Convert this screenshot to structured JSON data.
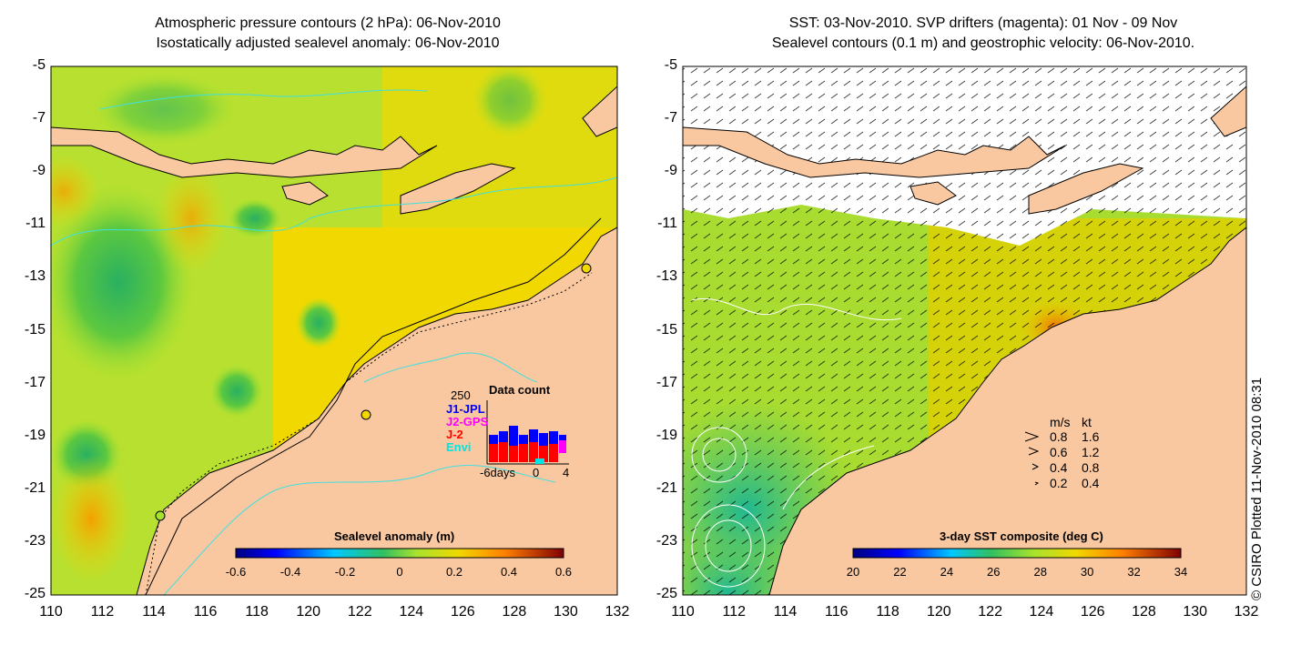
{
  "left_panel": {
    "title_line1": "Atmospheric pressure contours (2 hPa): 06-Nov-2010",
    "title_line2": "Isostatically adjusted sealevel anomaly: 06-Nov-2010",
    "colorbar_label": "Sealevel anomaly (m)",
    "colorbar_ticks": [
      "-0.6",
      "-0.4",
      "-0.2",
      "0",
      "0.2",
      "0.4",
      "0.6"
    ],
    "inset": {
      "title": "Data count",
      "max_label": "250",
      "series": [
        {
          "name": "J1-JPL",
          "color": "#0000ff"
        },
        {
          "name": "J2-GPS",
          "color": "#ff00ff"
        },
        {
          "name": "J-2",
          "color": "#ff0000"
        },
        {
          "name": "Envi",
          "color": "#00e5e5"
        }
      ],
      "x_left": "-6days",
      "x_mid": "0",
      "x_right": "4"
    }
  },
  "right_panel": {
    "title_line1": "SST: 03-Nov-2010. SVP drifters (magenta): 01 Nov - 09 Nov",
    "title_line2": "Sealevel contours (0.1 m) and geostrophic velocity: 06-Nov-2010.",
    "colorbar_label": "3-day SST composite (deg C)",
    "colorbar_ticks": [
      "20",
      "22",
      "24",
      "26",
      "28",
      "30",
      "32",
      "34"
    ],
    "velocity_legend": {
      "header_ms": "m/s",
      "header_kt": "kt",
      "rows": [
        {
          "ms": "0.8",
          "kt": "1.6"
        },
        {
          "ms": "0.6",
          "kt": "1.2"
        },
        {
          "ms": "0.4",
          "kt": "0.8"
        },
        {
          "ms": "0.2",
          "kt": "0.4"
        }
      ]
    }
  },
  "y_ticks": [
    "-5",
    "-7",
    "-9",
    "-11",
    "-13",
    "-15",
    "-17",
    "-19",
    "-21",
    "-23",
    "-25"
  ],
  "x_ticks": [
    "110",
    "112",
    "114",
    "116",
    "118",
    "120",
    "122",
    "124",
    "126",
    "128",
    "130",
    "132"
  ],
  "credit": "© CSIRO Plotted 11-Nov-2010 08:31",
  "colors": {
    "land": "#f9c8a0",
    "ocean_green": "#a6e22e",
    "ocean_yellow": "#f0d800",
    "coast_contour": "#40e0e0"
  }
}
